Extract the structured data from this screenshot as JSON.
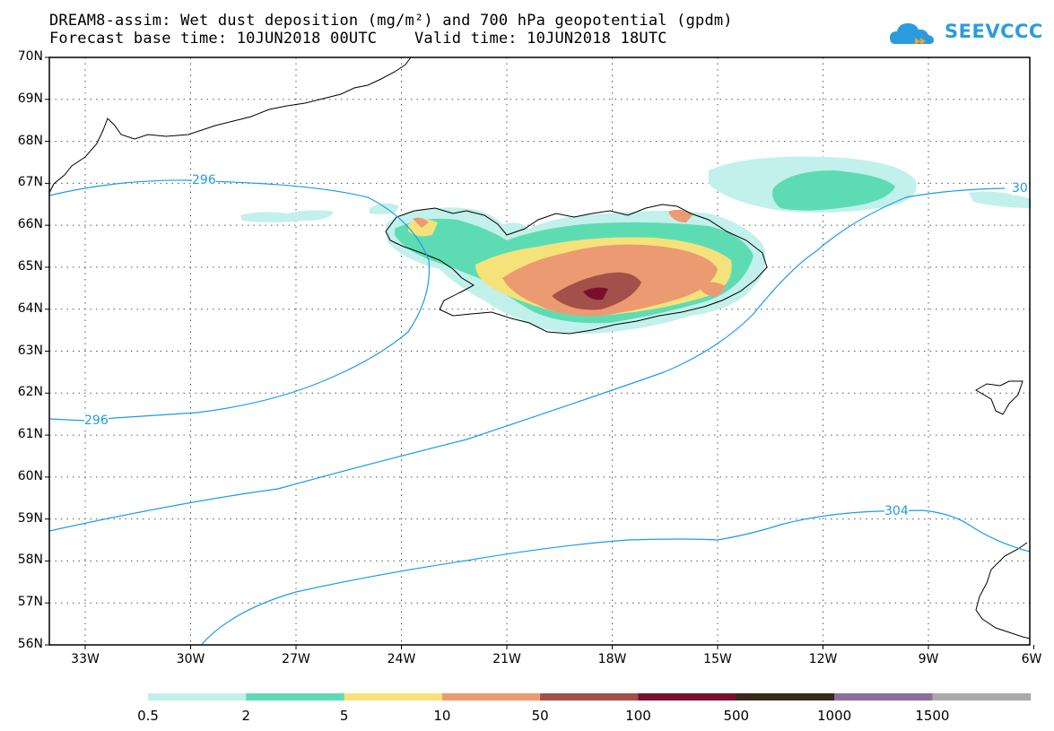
{
  "header": {
    "title_line1": "DREAM8-assim: Wet dust deposition (mg/m²) and 700 hPa geopotential (gpdm)",
    "title_line2": "Forecast base time: 10JUN2018 00UTC    Valid time: 10JUN2018 18UTC",
    "logo_text": "SEEVCCC",
    "logo_color": "#2b9be0"
  },
  "map": {
    "lat_labels": [
      "70N",
      "69N",
      "68N",
      "67N",
      "66N",
      "65N",
      "64N",
      "63N",
      "62N",
      "61N",
      "60N",
      "59N",
      "58N",
      "57N",
      "56N"
    ],
    "lon_labels": [
      "33W",
      "30W",
      "27W",
      "24W",
      "21W",
      "18W",
      "15W",
      "12W",
      "9W",
      "6W"
    ],
    "contour_labels": [
      {
        "text": "296"
      },
      {
        "text": "296"
      },
      {
        "text": "30"
      },
      {
        "text": "304"
      }
    ],
    "contour_color": "#1e9be8"
  },
  "colorbar": {
    "colors": [
      "#c2f0ea",
      "#5ddcb3",
      "#f6e27a",
      "#eb9a72",
      "#a3504a",
      "#7a0f2d",
      "#3a2a1c",
      "#8e6f9c",
      "#a9a9a9"
    ],
    "labels": [
      "0.5",
      "2",
      "5",
      "10",
      "50",
      "100",
      "500",
      "1000",
      "1500"
    ]
  }
}
